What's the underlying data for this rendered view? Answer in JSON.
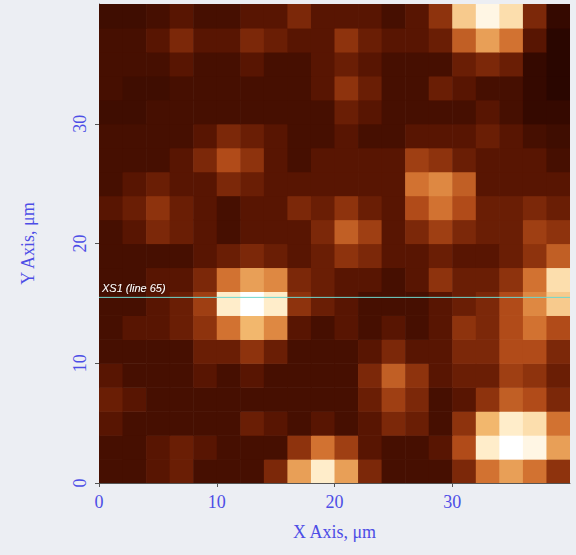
{
  "chart_data": {
    "type": "heatmap",
    "x_label": "X Axis, μm",
    "y_label": "Y Axis, μm",
    "x": [
      1,
      3,
      5,
      7,
      9,
      11,
      13,
      15,
      17,
      19,
      21,
      23,
      25,
      27,
      29,
      31,
      33,
      35,
      37,
      39
    ],
    "y": [
      1,
      3,
      5,
      7,
      9,
      11,
      13,
      15,
      17,
      19,
      21,
      23,
      25,
      27,
      29,
      31,
      33,
      35,
      37,
      39
    ],
    "values": [
      [
        2,
        2,
        2.5,
        3,
        2,
        2,
        2,
        3.5,
        7,
        9,
        7,
        3.5,
        2,
        2,
        2,
        3.5,
        6,
        7,
        6,
        4
      ],
      [
        2,
        2,
        2.5,
        3,
        2.5,
        2,
        2,
        2,
        4,
        6,
        4.5,
        2.5,
        2,
        2,
        2.5,
        5,
        9,
        10,
        9.5,
        7
      ],
      [
        2.5,
        2,
        2,
        2,
        2,
        2,
        3,
        2.5,
        2,
        2.5,
        2,
        2.5,
        3.5,
        3,
        2,
        4,
        7.5,
        9,
        8.5,
        6
      ],
      [
        3,
        2.5,
        2,
        2,
        2,
        2,
        2,
        2,
        2,
        2,
        2,
        3,
        4.5,
        3.5,
        2,
        2.5,
        4,
        5.5,
        5,
        3.5
      ],
      [
        2.5,
        2,
        2,
        2,
        2.5,
        2,
        2.5,
        2,
        2,
        2,
        2,
        3.5,
        5.5,
        4,
        2.5,
        3,
        3,
        4.5,
        4,
        3
      ],
      [
        2,
        2,
        2,
        2,
        3,
        3,
        4,
        3,
        2,
        2,
        2,
        2.5,
        3.5,
        2.5,
        2.5,
        3.5,
        3.5,
        5,
        5,
        3.5
      ],
      [
        2,
        2.5,
        2.5,
        3,
        4,
        6,
        7.5,
        6.5,
        2.5,
        2,
        2.5,
        2,
        2.5,
        2,
        2.5,
        4,
        3.5,
        5,
        6,
        5
      ],
      [
        2,
        2,
        2.5,
        3,
        4.5,
        9,
        10,
        9,
        4,
        3,
        2.5,
        2,
        2,
        2,
        2.5,
        3,
        3.5,
        5,
        6.5,
        8
      ],
      [
        2,
        2,
        2.5,
        2.5,
        3.5,
        6,
        7,
        6.5,
        3.5,
        3,
        2.5,
        2.5,
        2,
        2.5,
        4,
        3,
        3,
        4,
        6,
        8.5
      ],
      [
        2,
        2,
        2,
        2,
        2.5,
        3,
        3.5,
        3,
        2.5,
        3,
        4,
        3.5,
        2.5,
        2.5,
        3,
        2.5,
        2.5,
        3,
        4,
        5.5
      ],
      [
        2,
        2.5,
        3.5,
        3,
        2.5,
        2,
        2.5,
        2.5,
        2.5,
        3.5,
        5.5,
        4.5,
        2.5,
        3.5,
        4.5,
        3.5,
        3,
        3,
        4.5,
        4
      ],
      [
        2.5,
        3,
        4,
        3,
        2.5,
        2,
        2.5,
        2.5,
        3.5,
        3,
        4,
        3,
        2.5,
        5,
        6,
        5,
        3,
        3,
        3.5,
        3
      ],
      [
        2,
        2.5,
        3,
        2.5,
        2.5,
        3.5,
        3,
        2.5,
        2.5,
        2.5,
        2.5,
        2.5,
        2.5,
        6,
        6.5,
        5.5,
        2.5,
        2.5,
        2.5,
        2.5
      ],
      [
        2,
        2,
        2,
        2.5,
        3.5,
        5,
        4,
        2.5,
        2,
        2.5,
        2.5,
        2.5,
        2.5,
        4.5,
        4,
        3,
        2.5,
        2.5,
        2.5,
        2
      ],
      [
        2,
        2,
        2,
        2,
        2.5,
        3.5,
        3,
        2.5,
        2,
        2,
        2.5,
        2,
        2,
        2.5,
        2.5,
        2.5,
        3,
        2.5,
        2,
        1.8
      ],
      [
        1.8,
        1.8,
        2,
        2,
        2,
        2,
        2,
        2,
        2,
        2,
        3,
        2.5,
        2,
        2,
        2,
        2,
        2.5,
        2,
        1.5,
        1.5
      ],
      [
        2,
        1.8,
        1.8,
        2,
        2,
        2,
        2,
        2,
        2,
        2.5,
        4,
        3,
        2,
        2,
        3,
        2.5,
        2,
        2,
        1.5,
        1.2
      ],
      [
        2,
        2,
        2,
        2.5,
        2,
        2,
        2.5,
        2,
        2,
        2.5,
        3,
        2.5,
        2,
        2,
        2,
        3,
        3.5,
        3,
        1.5,
        1.2
      ],
      [
        2,
        2,
        2.5,
        3.5,
        2.5,
        2.5,
        3.5,
        3,
        2.5,
        2.5,
        4,
        3,
        2.5,
        2.5,
        3,
        5.5,
        7,
        6,
        2.5,
        1.2
      ],
      [
        1.8,
        1.8,
        2,
        2.5,
        2,
        2,
        2.5,
        2.5,
        3.5,
        2.5,
        2.5,
        2.5,
        2,
        2.5,
        4,
        8,
        9.5,
        8.5,
        3.5,
        1.5
      ]
    ],
    "xlim": [
      0,
      40
    ],
    "ylim": [
      0,
      40
    ],
    "xticks": [
      0,
      10,
      20,
      30
    ],
    "yticks": [
      0,
      10,
      20,
      30
    ],
    "annotations": [
      {
        "text": "XS1 (line 65)",
        "y": 15.5
      }
    ]
  }
}
